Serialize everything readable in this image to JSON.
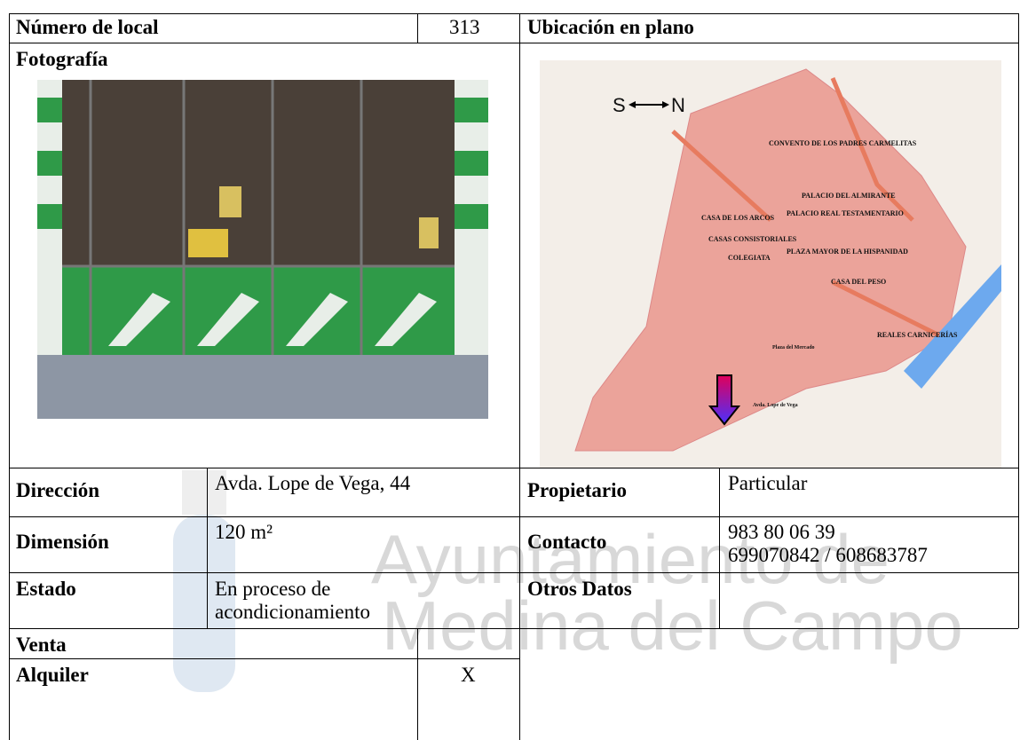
{
  "header": {
    "local_label": "Número de local",
    "local_number": "313",
    "map_label": "Ubicación en plano"
  },
  "photo_label": "Fotografía",
  "map": {
    "compass_south": "S",
    "compass_north": "N",
    "places": [
      "CONVENTO DE LOS PADRES CARMELITAS",
      "PALACIO DEL ALMIRANTE",
      "CASA DE LOS ARCOS",
      "PALACIO REAL TESTAMENTARIO",
      "CASAS CONSISTORIALES",
      "PLAZA MAYOR DE LA HISPANIDAD",
      "COLEGIATA",
      "CASA DEL PESO",
      "REALES CARNICERÍAS",
      "Plaza del Mercado",
      "Avda. Lope de Vega"
    ]
  },
  "details": {
    "address_label": "Dirección",
    "address": "Avda. Lope de Vega, 44",
    "owner_label": "Propietario",
    "owner": "Particular",
    "size_label": "Dimensión",
    "size": "120 m²",
    "contact_label": "Contacto",
    "contact": [
      "983 80 06 39",
      "699070842 / 608683787"
    ],
    "state_label": "Estado",
    "state": "En proceso de acondicionamiento",
    "other_label": "Otros Datos",
    "sale_label": "Venta",
    "rent_label": "Alquiler",
    "rent_mark": "X"
  },
  "watermark": [
    "Ayuntamiento de",
    "Medina del Campo"
  ]
}
